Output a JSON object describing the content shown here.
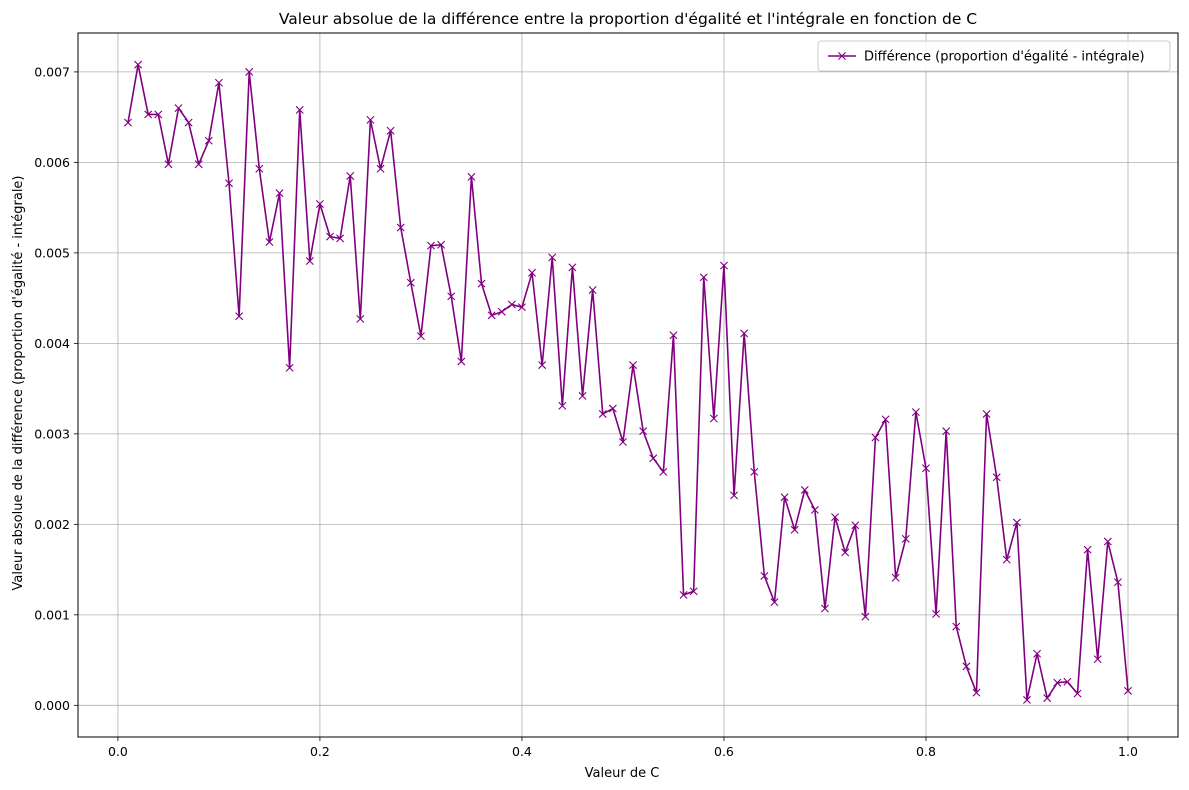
{
  "chart_data": {
    "type": "line",
    "title": "Valeur absolue de la différence entre la proportion d'égalité et l'intégrale en fonction de C",
    "xlabel": "Valeur de C",
    "ylabel": "Valeur absolue de la différence (proportion d'égalité - intégrale)",
    "xlim": [
      -0.0395,
      1.0495
    ],
    "ylim": [
      -0.00035,
      0.00743
    ],
    "xticks": [
      0.0,
      0.2,
      0.4,
      0.6,
      0.8,
      1.0
    ],
    "xtick_labels": [
      "0.0",
      "0.2",
      "0.4",
      "0.6",
      "0.8",
      "1.0"
    ],
    "yticks": [
      0.0,
      0.001,
      0.002,
      0.003,
      0.004,
      0.005,
      0.006,
      0.007
    ],
    "ytick_labels": [
      "0.000",
      "0.001",
      "0.002",
      "0.003",
      "0.004",
      "0.005",
      "0.006",
      "0.007"
    ],
    "grid": true,
    "legend_position": "top-right",
    "series": [
      {
        "name": "Différence (proportion d'égalité - intégrale)",
        "color": "#800080",
        "marker": "x",
        "x": [
          0.01,
          0.02,
          0.03,
          0.04,
          0.05,
          0.06,
          0.07,
          0.08,
          0.09,
          0.1,
          0.11,
          0.12,
          0.13,
          0.14,
          0.15,
          0.16,
          0.17,
          0.18,
          0.19,
          0.2,
          0.21,
          0.22,
          0.23,
          0.24,
          0.25,
          0.26,
          0.27,
          0.28,
          0.29,
          0.3,
          0.31,
          0.32,
          0.33,
          0.34,
          0.35,
          0.36,
          0.37,
          0.38,
          0.39,
          0.4,
          0.41,
          0.42,
          0.43,
          0.44,
          0.45,
          0.46,
          0.47,
          0.48,
          0.49,
          0.5,
          0.51,
          0.52,
          0.53,
          0.54,
          0.55,
          0.56,
          0.57,
          0.58,
          0.59,
          0.6,
          0.61,
          0.62,
          0.63,
          0.64,
          0.65,
          0.66,
          0.67,
          0.68,
          0.69,
          0.7,
          0.71,
          0.72,
          0.73,
          0.74,
          0.75,
          0.76,
          0.77,
          0.78,
          0.79,
          0.8,
          0.81,
          0.82,
          0.83,
          0.84,
          0.85,
          0.86,
          0.87,
          0.88,
          0.89,
          0.9,
          0.91,
          0.92,
          0.93,
          0.94,
          0.95,
          0.96,
          0.97,
          0.98,
          0.99,
          1.0
        ],
        "y": [
          0.00644,
          0.00708,
          0.00653,
          0.00653,
          0.00598,
          0.0066,
          0.00644,
          0.00598,
          0.00624,
          0.00688,
          0.00577,
          0.0043,
          0.007,
          0.00593,
          0.00512,
          0.00566,
          0.00373,
          0.00658,
          0.00491,
          0.00554,
          0.00518,
          0.00516,
          0.00585,
          0.00427,
          0.00647,
          0.00593,
          0.00635,
          0.00528,
          0.00467,
          0.00408,
          0.00508,
          0.00509,
          0.00452,
          0.0038,
          0.00584,
          0.00466,
          0.00431,
          0.00435,
          0.00443,
          0.0044,
          0.00478,
          0.00376,
          0.00495,
          0.00331,
          0.00484,
          0.00342,
          0.00459,
          0.00322,
          0.00328,
          0.00291,
          0.00376,
          0.00303,
          0.00273,
          0.00258,
          0.00409,
          0.00122,
          0.00126,
          0.00473,
          0.00317,
          0.00486,
          0.00232,
          0.00411,
          0.00258,
          0.00143,
          0.00114,
          0.0023,
          0.00194,
          0.00238,
          0.00216,
          0.00107,
          0.00208,
          0.00169,
          0.00199,
          0.00098,
          0.00296,
          0.00316,
          0.00141,
          0.00184,
          0.00324,
          0.00262,
          0.00101,
          0.00303,
          0.00087,
          0.00043,
          0.00014,
          0.00322,
          0.00252,
          0.00161,
          0.00202,
          6e-05,
          0.00057,
          8e-05,
          0.00025,
          0.00026,
          0.00013,
          0.00172,
          0.00051,
          0.00181,
          0.00136,
          0.00016
        ]
      }
    ]
  }
}
